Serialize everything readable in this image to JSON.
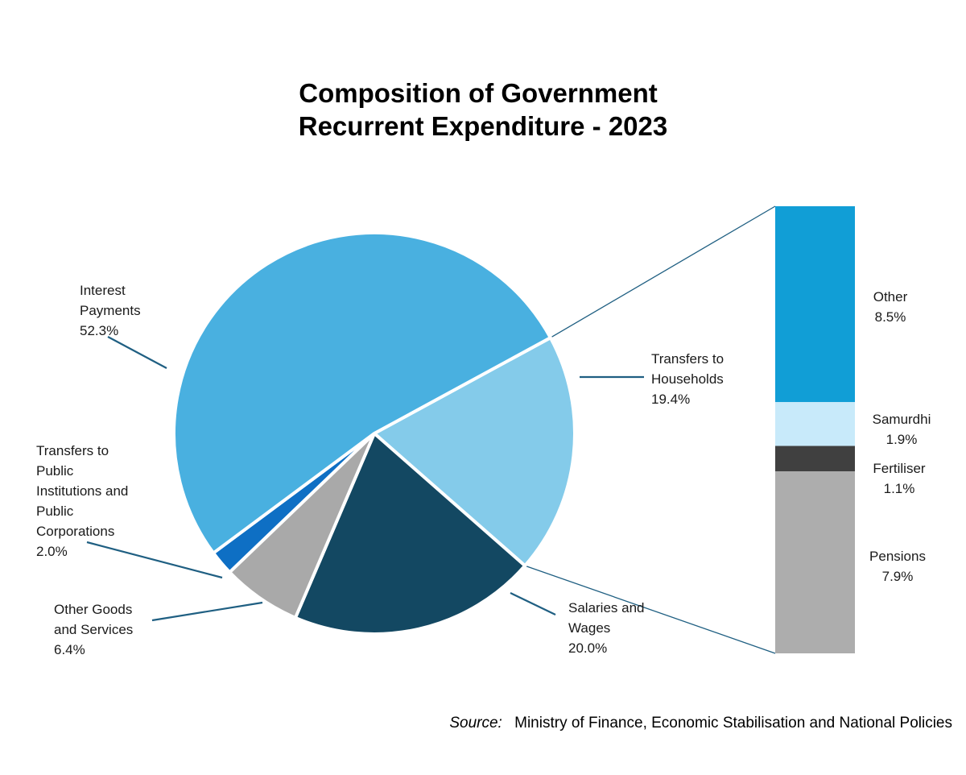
{
  "chart_data": {
    "type": "bar-of-pie",
    "title": [
      "Composition of Government",
      "Recurrent Expenditure  - 2023"
    ],
    "pie": {
      "slices": [
        {
          "key": "interest",
          "label": [
            "Interest",
            "Payments"
          ],
          "value": 52.3,
          "value_text": "52.3%",
          "color": "#49b0e0"
        },
        {
          "key": "households",
          "label": [
            "Transfers to",
            "Households"
          ],
          "value": 19.4,
          "value_text": "19.4%",
          "color": "#84cbea"
        },
        {
          "key": "salaries",
          "label": [
            "Salaries and",
            "Wages"
          ],
          "value": 20.0,
          "value_text": "20.0%",
          "color": "#134862"
        },
        {
          "key": "goods",
          "label": [
            "Other Goods",
            "and Services"
          ],
          "value": 6.4,
          "value_text": "6.4%",
          "color": "#a9a9a9"
        },
        {
          "key": "public",
          "label": [
            "Transfers to",
            "Public",
            "Institutions and",
            "Public",
            "Corporations"
          ],
          "value": 2.0,
          "value_text": "2.0%",
          "color": "#0e6fc4"
        }
      ]
    },
    "bar": {
      "parent": "households",
      "segments": [
        {
          "key": "other",
          "label": [
            "Other"
          ],
          "value": 8.5,
          "value_text": "8.5%",
          "color": "#119ed6"
        },
        {
          "key": "samurdhi",
          "label": [
            "Samurdhi"
          ],
          "value": 1.9,
          "value_text": "1.9%",
          "color": "#c8eafa"
        },
        {
          "key": "fertiliser",
          "label": [
            "Fertiliser"
          ],
          "value": 1.1,
          "value_text": "1.1%",
          "color": "#404040"
        },
        {
          "key": "pensions",
          "label": [
            "Pensions"
          ],
          "value": 7.9,
          "value_text": "7.9%",
          "color": "#adadad"
        }
      ]
    },
    "source": {
      "prefix": "Source:",
      "text": "Ministry of Finance, Economic Stabilisation and National Policies"
    },
    "colors": {
      "leader": "#1f5f82"
    }
  }
}
